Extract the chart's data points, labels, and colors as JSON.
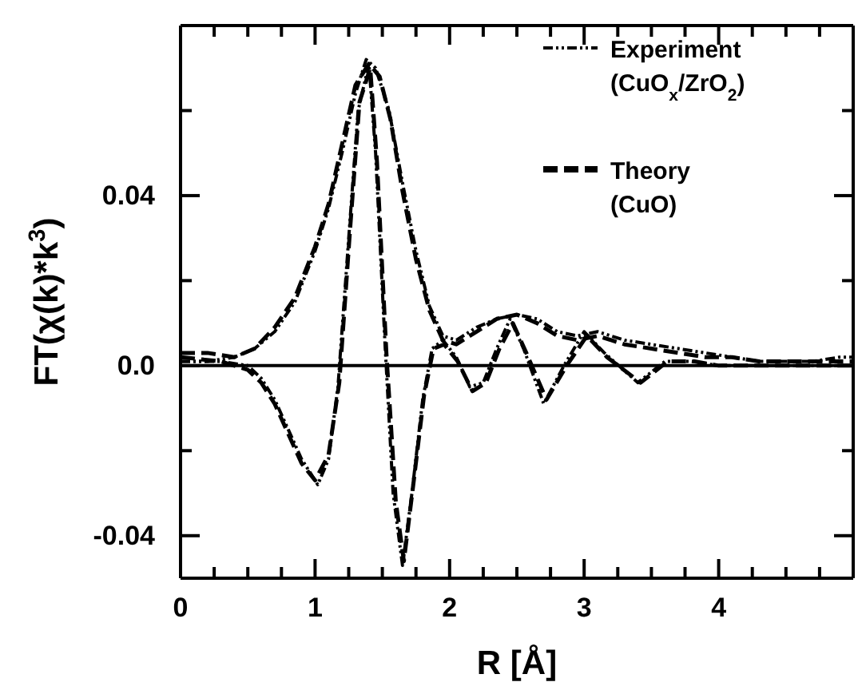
{
  "chart_data": {
    "type": "line",
    "xlabel": "R [Å]",
    "ylabel": "FT(χ(k)*k$^{3}$)",
    "xlim": [
      0,
      5
    ],
    "ylim": [
      -0.05,
      0.08
    ],
    "xticks": [
      0,
      {
        "value": 0.25,
        "label": null
      },
      {
        "value": 0.5,
        "label": null
      },
      {
        "value": 0.75,
        "label": null
      },
      1,
      {
        "value": 1.25,
        "label": null
      },
      {
        "value": 1.5,
        "label": null
      },
      {
        "value": 1.75,
        "label": null
      },
      2,
      {
        "value": 2.25,
        "label": null
      },
      {
        "value": 2.5,
        "label": null
      },
      {
        "value": 2.75,
        "label": null
      },
      3,
      {
        "value": 3.25,
        "label": null
      },
      {
        "value": 3.5,
        "label": null
      },
      {
        "value": 3.75,
        "label": null
      },
      4,
      {
        "value": 4.25,
        "label": null
      },
      {
        "value": 4.5,
        "label": null
      },
      {
        "value": 4.75,
        "label": null
      }
    ],
    "yticks": [
      {
        "value": -0.04,
        "label": "-0.04"
      },
      {
        "value": -0.02,
        "label": null
      },
      {
        "value": 0,
        "label": "0.0"
      },
      {
        "value": 0.02,
        "label": null
      },
      {
        "value": 0.04,
        "label": "0.04"
      },
      {
        "value": 0.06,
        "label": null
      }
    ],
    "legend": "top right",
    "grid": false,
    "ref_lines": [
      {
        "axis": "y",
        "value": 0,
        "color": "#000000",
        "line_style": "solid"
      }
    ],
    "series": [
      {
        "name": "Experiment (CuO$_{x}$/ZrO$_{2}$)",
        "color": "#000000",
        "line_style": "dotted",
        "x": [
          0,
          0.2,
          0.4,
          0.55,
          0.7,
          0.85,
          1.0,
          1.1,
          1.2,
          1.3,
          1.38,
          1.45,
          1.55,
          1.65,
          1.75,
          1.85,
          1.95,
          2.05,
          2.2,
          2.35,
          2.5,
          2.65,
          2.8,
          2.95,
          3.1,
          3.3,
          3.5,
          3.7,
          3.9,
          4.1,
          4.3,
          4.5,
          4.7,
          4.9,
          5.0
        ],
        "values": [
          0.001,
          0.001,
          0.002,
          0.004,
          0.008,
          0.015,
          0.027,
          0.037,
          0.05,
          0.064,
          0.072,
          0.07,
          0.06,
          0.043,
          0.027,
          0.014,
          0.007,
          0.006,
          0.009,
          0.011,
          0.012,
          0.011,
          0.008,
          0.007,
          0.008,
          0.006,
          0.005,
          0.004,
          0.003,
          0.002,
          0.001,
          0.001,
          0.001,
          0.002,
          0.002
        ]
      },
      {
        "color": "#000000",
        "line_style": "dotted",
        "x": [
          0,
          0.3,
          0.5,
          0.6,
          0.7,
          0.8,
          0.9,
          1.02,
          1.1,
          1.17,
          1.25,
          1.32,
          1.4,
          1.45,
          1.52,
          1.58,
          1.65,
          1.72,
          1.8,
          1.87,
          1.95,
          2.05,
          2.15,
          2.25,
          2.35,
          2.45,
          2.55,
          2.7,
          2.85,
          3.0,
          3.15,
          3.4,
          3.6,
          3.8,
          4.0,
          4.3,
          4.6,
          5.0
        ],
        "values": [
          0.001,
          0.001,
          0.0,
          -0.003,
          -0.008,
          -0.015,
          -0.022,
          -0.028,
          -0.022,
          -0.005,
          0.03,
          0.06,
          0.071,
          0.05,
          0.005,
          -0.03,
          -0.047,
          -0.03,
          -0.008,
          0.004,
          0.006,
          0.002,
          -0.005,
          -0.004,
          0.004,
          0.011,
          0.004,
          -0.009,
          0.0,
          0.008,
          0.003,
          -0.004,
          0.001,
          0.001,
          0.0,
          0.0,
          0.0,
          0.0
        ]
      },
      {
        "name": "Theory (CuO)",
        "color": "#000000",
        "line_style": "dashed",
        "x": [
          0,
          0.2,
          0.4,
          0.55,
          0.7,
          0.85,
          1.0,
          1.1,
          1.2,
          1.3,
          1.4,
          1.48,
          1.56,
          1.65,
          1.75,
          1.85,
          1.95,
          2.05,
          2.2,
          2.35,
          2.5,
          2.65,
          2.8,
          2.95,
          3.1,
          3.3,
          3.5,
          3.7,
          3.9,
          4.1,
          4.3,
          4.5,
          4.7,
          4.9,
          5.0
        ],
        "values": [
          0.003,
          0.003,
          0.002,
          0.004,
          0.009,
          0.016,
          0.028,
          0.038,
          0.052,
          0.066,
          0.071,
          0.068,
          0.058,
          0.041,
          0.025,
          0.013,
          0.006,
          0.005,
          0.008,
          0.011,
          0.012,
          0.01,
          0.007,
          0.006,
          0.007,
          0.005,
          0.004,
          0.003,
          0.002,
          0.002,
          0.001,
          0.001,
          0.001,
          0.001,
          0.001
        ]
      },
      {
        "color": "#000000",
        "line_style": "dashed",
        "x": [
          0,
          0.3,
          0.5,
          0.6,
          0.7,
          0.8,
          0.9,
          1.0,
          1.1,
          1.18,
          1.26,
          1.33,
          1.41,
          1.46,
          1.53,
          1.6,
          1.66,
          1.73,
          1.81,
          1.88,
          1.96,
          2.06,
          2.17,
          2.27,
          2.37,
          2.47,
          2.57,
          2.72,
          2.87,
          3.02,
          3.17,
          3.42,
          3.62,
          3.82,
          4.0,
          4.3,
          4.6,
          5.0
        ],
        "values": [
          0.002,
          0.001,
          -0.001,
          -0.004,
          -0.009,
          -0.016,
          -0.023,
          -0.027,
          -0.021,
          -0.004,
          0.032,
          0.062,
          0.07,
          0.048,
          0.003,
          -0.032,
          -0.046,
          -0.028,
          -0.007,
          0.004,
          0.005,
          0.001,
          -0.006,
          -0.004,
          0.004,
          0.01,
          0.003,
          -0.008,
          0.0,
          0.007,
          0.002,
          -0.004,
          0.001,
          0.001,
          0.0,
          0.0,
          0.0,
          0.0
        ]
      }
    ]
  }
}
